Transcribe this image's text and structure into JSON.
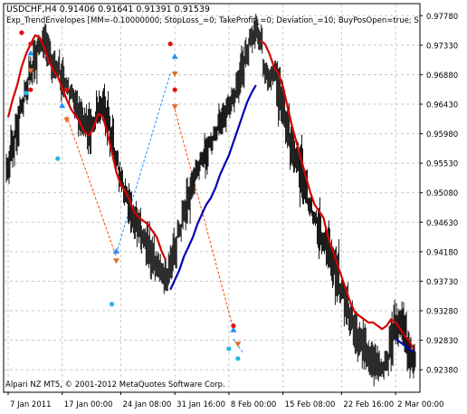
{
  "header": {
    "symbol_line": "USDCHF,H4  0.91406 0.91641 0.91391 0.91539",
    "indicator_line": "Exp_TrendEnvelopes [MM=-0.10000000; StopLoss_=0; TakeProfit_=0; Deviation_=10; BuyPosOpen=true; S"
  },
  "footer": {
    "copyright": "Alpari NZ MT5, © 2001-2012 MetaQuotes Software Corp."
  },
  "colors": {
    "background": "#ffffff",
    "grid": "#c8c8c8",
    "bars": "#000000",
    "upper_envelope": "#d40000",
    "lower_envelope": "#0000b4",
    "buy_arrow": "#1f8fff",
    "sell_arrow": "#e01010",
    "trade_buy": "#1e90ff",
    "trade_sell": "#ff4500"
  },
  "chart_data": {
    "type": "ohlc",
    "price_axis": [
      "0.97780",
      "0.97330",
      "0.96880",
      "0.96430",
      "0.95980",
      "0.95530",
      "0.95080",
      "0.94630",
      "0.94180",
      "0.93730",
      "0.93280",
      "0.92830",
      "0.92380"
    ],
    "price_range": [
      0.9205,
      0.9795
    ],
    "time_axis": [
      "7 Jan 2011",
      "17 Jan 00:00",
      "24 Jan 08:00",
      "31 Jan 16:00",
      "8 Feb 00:00",
      "15 Feb 08:00",
      "22 Feb 16:00",
      "2 Mar 00:00"
    ],
    "close": [
      0.9545,
      0.9578,
      0.961,
      0.964,
      0.9665,
      0.969,
      0.9715,
      0.9732,
      0.974,
      0.9722,
      0.9705,
      0.9695,
      0.968,
      0.9672,
      0.966,
      0.965,
      0.9628,
      0.961,
      0.9602,
      0.9612,
      0.963,
      0.9638,
      0.962,
      0.959,
      0.956,
      0.953,
      0.9505,
      0.9488,
      0.947,
      0.946,
      0.944,
      0.942,
      0.9405,
      0.9395,
      0.9385,
      0.9375,
      0.9392,
      0.942,
      0.945,
      0.948,
      0.95,
      0.952,
      0.9545,
      0.956,
      0.9575,
      0.9585,
      0.96,
      0.9615,
      0.9625,
      0.964,
      0.9655,
      0.9672,
      0.9695,
      0.972,
      0.9745,
      0.976,
      0.974,
      0.97,
      0.968,
      0.969,
      0.967,
      0.964,
      0.961,
      0.958,
      0.956,
      0.954,
      0.952,
      0.949,
      0.947,
      0.945,
      0.943,
      0.942,
      0.94,
      0.938,
      0.936,
      0.934,
      0.932,
      0.93,
      0.9285,
      0.927,
      0.926,
      0.925,
      0.9245,
      0.924,
      0.925,
      0.928,
      0.93,
      0.931,
      0.929,
      0.927,
      0.9254
    ],
    "upper_envelope": [
      0.9623,
      0.965,
      0.9672,
      0.97,
      0.972,
      0.9735,
      0.9748,
      0.9745,
      0.973,
      0.971,
      0.9695,
      0.9685,
      0.9668,
      0.965,
      0.9635,
      0.9625,
      0.9615,
      0.96,
      0.9595,
      0.9608,
      0.9628,
      0.9625,
      0.96,
      0.957,
      0.954,
      0.952,
      0.951,
      0.9495,
      0.9478,
      0.947,
      0.9465,
      0.946,
      0.945,
      0.944,
      0.942,
      0.9405,
      null,
      null,
      null,
      null,
      null,
      null,
      null,
      null,
      null,
      null,
      null,
      null,
      null,
      null,
      null,
      null,
      null,
      null,
      null,
      null,
      0.974,
      0.9735,
      0.972,
      0.97,
      0.969,
      0.967,
      0.964,
      0.961,
      0.9585,
      0.956,
      0.9535,
      0.951,
      0.949,
      0.948,
      0.947,
      0.944,
      0.942,
      0.94,
      0.938,
      0.936,
      0.934,
      0.9325,
      0.932,
      0.9315,
      0.931,
      0.931,
      0.9305,
      0.93,
      0.9305,
      0.9315,
      0.931,
      0.93,
      0.929,
      0.9282,
      0.927
    ],
    "lower_envelope": [
      null,
      null,
      null,
      null,
      null,
      null,
      null,
      null,
      null,
      null,
      null,
      null,
      null,
      null,
      null,
      null,
      null,
      null,
      null,
      null,
      null,
      null,
      null,
      null,
      null,
      null,
      null,
      null,
      null,
      null,
      null,
      null,
      null,
      null,
      null,
      null,
      0.936,
      0.9375,
      0.939,
      0.941,
      0.9425,
      0.944,
      0.946,
      0.9475,
      0.949,
      0.95,
      0.9515,
      0.9535,
      0.955,
      0.9565,
      0.9585,
      0.9605,
      0.9625,
      0.9645,
      0.966,
      0.9672,
      null,
      null,
      null,
      null,
      null,
      null,
      null,
      null,
      null,
      null,
      null,
      null,
      null,
      null,
      null,
      null,
      null,
      null,
      null,
      null,
      null,
      null,
      null,
      null,
      null,
      null,
      null,
      null,
      null,
      null,
      0.9285,
      0.928,
      0.9275,
      0.927,
      0.9265
    ],
    "signals": [
      {
        "bar": 3,
        "kind": "sell_dot",
        "price": 0.9752
      },
      {
        "bar": 5,
        "kind": "sell_dot",
        "price": 0.9735
      },
      {
        "bar": 5,
        "kind": "buy_arrow",
        "price": 0.972
      },
      {
        "bar": 5,
        "kind": "sell_arrow",
        "price": 0.9695
      },
      {
        "bar": 4,
        "kind": "buy_dot",
        "price": 0.966
      },
      {
        "bar": 5,
        "kind": "sell_dot",
        "price": 0.9665
      },
      {
        "bar": 13,
        "kind": "sell_dot",
        "price": 0.9665
      },
      {
        "bar": 12,
        "kind": "buy_arrow",
        "price": 0.964
      },
      {
        "bar": 13,
        "kind": "sell_arrow",
        "price": 0.962
      },
      {
        "bar": 11,
        "kind": "buy_dot",
        "price": 0.956
      },
      {
        "bar": 24,
        "kind": "buy_arrow",
        "price": 0.9418
      },
      {
        "bar": 24,
        "kind": "sell_arrow",
        "price": 0.9405
      },
      {
        "bar": 23,
        "kind": "buy_dot",
        "price": 0.9338
      },
      {
        "bar": 36,
        "kind": "sell_dot",
        "price": 0.9735
      },
      {
        "bar": 37,
        "kind": "buy_arrow",
        "price": 0.9715
      },
      {
        "bar": 37,
        "kind": "sell_arrow",
        "price": 0.969
      },
      {
        "bar": 37,
        "kind": "sell_dot",
        "price": 0.9665
      },
      {
        "bar": 37,
        "kind": "sell_arrow",
        "price": 0.964
      },
      {
        "bar": 50,
        "kind": "buy_arrow",
        "price": 0.9298
      },
      {
        "bar": 50,
        "kind": "sell_dot",
        "price": 0.9305
      },
      {
        "bar": 51,
        "kind": "sell_arrow",
        "price": 0.9278
      },
      {
        "bar": 49,
        "kind": "buy_dot",
        "price": 0.927
      },
      {
        "bar": 51,
        "kind": "buy_dot",
        "price": 0.9255
      }
    ]
  }
}
